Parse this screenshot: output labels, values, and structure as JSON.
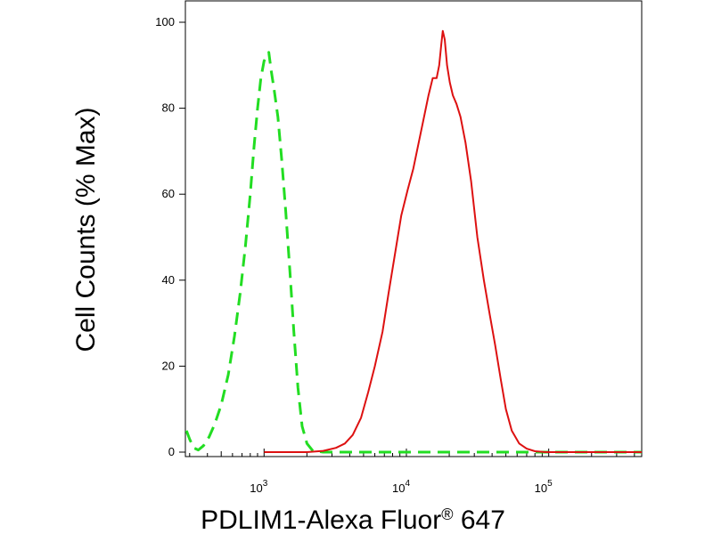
{
  "chart_data": {
    "type": "line",
    "title": "",
    "xlabel_main": "PDLIM1-Alexa Fluor",
    "xlabel_sup": "®",
    "xlabel_tail": " 647",
    "ylabel": "Cell Counts (% Max)",
    "x_scale": "log",
    "xlim": [
      280,
      450000
    ],
    "ylim": [
      0,
      100
    ],
    "x_ticks": [
      {
        "value": 1000,
        "base": "10",
        "exp": "3"
      },
      {
        "value": 10000,
        "base": "10",
        "exp": "4"
      },
      {
        "value": 100000,
        "base": "10",
        "exp": "5"
      }
    ],
    "y_ticks": [
      {
        "value": 0,
        "label": "0"
      },
      {
        "value": 20,
        "label": "20"
      },
      {
        "value": 40,
        "label": "40"
      },
      {
        "value": 60,
        "label": "60"
      },
      {
        "value": 80,
        "label": "80"
      },
      {
        "value": 100,
        "label": "100"
      }
    ],
    "grid": false,
    "series": [
      {
        "style": "dashed",
        "color": "#22dd22",
        "points": [
          [
            285,
            5
          ],
          [
            300,
            3
          ],
          [
            320,
            1
          ],
          [
            345,
            0.5
          ],
          [
            375,
            1.5
          ],
          [
            410,
            3.5
          ],
          [
            450,
            6.5
          ],
          [
            500,
            11
          ],
          [
            560,
            18
          ],
          [
            620,
            27
          ],
          [
            680,
            37
          ],
          [
            740,
            48
          ],
          [
            800,
            60
          ],
          [
            850,
            71
          ],
          [
            900,
            80
          ],
          [
            950,
            87
          ],
          [
            1000,
            91
          ],
          [
            1040,
            92
          ],
          [
            1080,
            93
          ],
          [
            1120,
            89
          ],
          [
            1180,
            84
          ],
          [
            1250,
            78
          ],
          [
            1330,
            68
          ],
          [
            1420,
            56
          ],
          [
            1520,
            42
          ],
          [
            1620,
            28
          ],
          [
            1730,
            15
          ],
          [
            1850,
            6
          ],
          [
            2000,
            2
          ],
          [
            2200,
            0.3
          ],
          [
            2600,
            0
          ],
          [
            5000,
            0
          ],
          [
            20000,
            0
          ],
          [
            100000,
            0
          ],
          [
            450000,
            0
          ]
        ]
      },
      {
        "style": "solid",
        "color": "#dd1111",
        "points": [
          [
            1000,
            0
          ],
          [
            2000,
            0
          ],
          [
            2600,
            0.3
          ],
          [
            3200,
            1
          ],
          [
            3700,
            2
          ],
          [
            4200,
            4
          ],
          [
            4800,
            8
          ],
          [
            5400,
            14
          ],
          [
            6000,
            20
          ],
          [
            6800,
            28
          ],
          [
            7500,
            37
          ],
          [
            8300,
            46
          ],
          [
            9200,
            55
          ],
          [
            10200,
            61
          ],
          [
            11200,
            66
          ],
          [
            12200,
            72
          ],
          [
            13300,
            78
          ],
          [
            14300,
            83
          ],
          [
            15300,
            87
          ],
          [
            16300,
            87
          ],
          [
            17000,
            90
          ],
          [
            17600,
            95
          ],
          [
            18000,
            98
          ],
          [
            18600,
            96
          ],
          [
            19300,
            90
          ],
          [
            20200,
            86
          ],
          [
            21200,
            83
          ],
          [
            22500,
            81
          ],
          [
            24000,
            78
          ],
          [
            26000,
            72
          ],
          [
            28500,
            63
          ],
          [
            31500,
            50
          ],
          [
            35000,
            40
          ],
          [
            38500,
            32
          ],
          [
            42000,
            25
          ],
          [
            46000,
            17
          ],
          [
            50000,
            10
          ],
          [
            55000,
            5
          ],
          [
            62000,
            2
          ],
          [
            70000,
            0.8
          ],
          [
            80000,
            0.2
          ],
          [
            95000,
            0
          ],
          [
            120000,
            0
          ],
          [
            450000,
            0
          ]
        ]
      }
    ]
  }
}
